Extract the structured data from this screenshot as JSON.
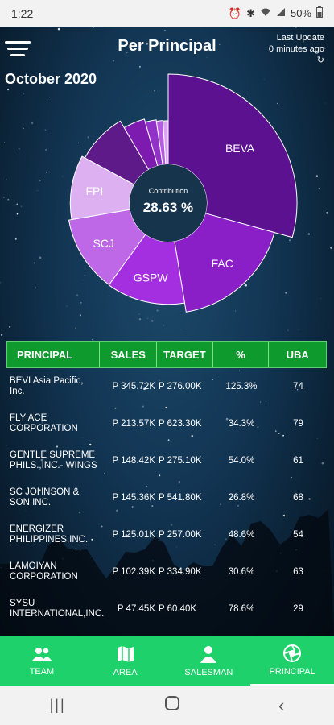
{
  "status_bar": {
    "time": "1:22",
    "battery": "50%",
    "icons": [
      "alarm-icon",
      "bluetooth-icon",
      "wifi-icon",
      "signal-icon",
      "battery-icon"
    ]
  },
  "header": {
    "title": "Per Principal",
    "last_update_label": "Last Update",
    "last_update_value": "0 minutes ago"
  },
  "period": "October 2020",
  "chart_data": {
    "type": "pie",
    "center_label": "Contribution",
    "center_value": "28.63 %",
    "slices": [
      {
        "label": "BEVA",
        "value": 345.72,
        "color": "#5c1191"
      },
      {
        "label": "FAC",
        "value": 213.57,
        "color": "#8a1fc7"
      },
      {
        "label": "GSPW",
        "value": 148.42,
        "color": "#a42fe0"
      },
      {
        "label": "SCJ",
        "value": 145.36,
        "color": "#be68e8"
      },
      {
        "label": "FPI",
        "value": 125.01,
        "color": "#ddb0f2"
      },
      {
        "label": "",
        "value": 102.39,
        "color": "#5e1a88"
      },
      {
        "label": "",
        "value": 47.45,
        "color": "#7d1ab0"
      },
      {
        "label": "",
        "value": 25.0,
        "color": "#9232c9"
      },
      {
        "label": "",
        "value": 15.0,
        "color": "#b55de0"
      },
      {
        "label": "",
        "value": 12.0,
        "color": "#d9a4f2"
      }
    ]
  },
  "table": {
    "headers": [
      "PRINCIPAL",
      "SALES",
      "TARGET",
      "%",
      "UBA"
    ],
    "rows": [
      {
        "principal": "BEVI Asia Pacific, Inc.",
        "sales": "P 345.72K",
        "target": "P 276.00K",
        "pct": "125.3%",
        "uba": "74"
      },
      {
        "principal": "FLY ACE CORPORATION",
        "sales": "P 213.57K",
        "target": "P 623.30K",
        "pct": "34.3%",
        "uba": "79"
      },
      {
        "principal": "GENTLE SUPREME PHILS.,INC.- WINGS",
        "sales": "P 148.42K",
        "target": "P 275.10K",
        "pct": "54.0%",
        "uba": "61"
      },
      {
        "principal": "SC JOHNSON & SON INC.",
        "sales": "P 145.36K",
        "target": "P 541.80K",
        "pct": "26.8%",
        "uba": "68"
      },
      {
        "principal": "ENERGIZER PHILIPPINES,INC.",
        "sales": "P 125.01K",
        "target": "P 257.00K",
        "pct": "48.6%",
        "uba": "54"
      },
      {
        "principal": "LAMOIYAN CORPORATION",
        "sales": "P 102.39K",
        "target": "P 334.90K",
        "pct": "30.6%",
        "uba": "63"
      },
      {
        "principal": "SYSU INTERNATIONAL,INC.",
        "sales": "P 47.45K",
        "target": "P 60.40K",
        "pct": "78.6%",
        "uba": "29"
      }
    ]
  },
  "bottom_nav": {
    "items": [
      {
        "label": "TEAM",
        "icon": "team-icon"
      },
      {
        "label": "AREA",
        "icon": "map-icon"
      },
      {
        "label": "SALESMAN",
        "icon": "person-icon"
      },
      {
        "label": "PRINCIPAL",
        "icon": "aperture-icon"
      }
    ],
    "active": "PRINCIPAL",
    "color": "#1fd16a"
  }
}
